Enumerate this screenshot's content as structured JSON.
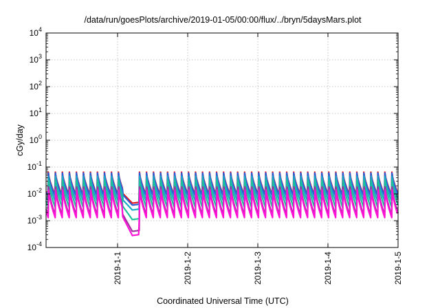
{
  "chart_data": {
    "type": "line",
    "title": "/data/run/goesPlots/archive/2019-01-05/00:00/flux/../bryn/5daysMars.plot",
    "xlabel": "Coordinated Universal Time (UTC)",
    "ylabel": "cGy/day",
    "yscale": "log",
    "ylim": [
      0.0001,
      10000
    ],
    "y_ticks": [
      {
        "exp": -4,
        "label_base": "10",
        "label_exp": "-4"
      },
      {
        "exp": -3,
        "label_base": "10",
        "label_exp": "-3"
      },
      {
        "exp": -2,
        "label_base": "10",
        "label_exp": "-2"
      },
      {
        "exp": -1,
        "label_base": "10",
        "label_exp": "-1"
      },
      {
        "exp": 0,
        "label_base": "10",
        "label_exp": "0"
      },
      {
        "exp": 1,
        "label_base": "10",
        "label_exp": "1"
      },
      {
        "exp": 2,
        "label_base": "10",
        "label_exp": "2"
      },
      {
        "exp": 3,
        "label_base": "10",
        "label_exp": "3"
      },
      {
        "exp": 4,
        "label_base": "10",
        "label_exp": "4"
      }
    ],
    "x_range_days": [
      -1.02,
      4.0
    ],
    "x_ticks": [
      {
        "day": 0,
        "label": "2019-1-1"
      },
      {
        "day": 1,
        "label": "2019-1-2"
      },
      {
        "day": 2,
        "label": "2019-1-3"
      },
      {
        "day": 3,
        "label": "2019-1-4"
      },
      {
        "day": 4,
        "label": "2019-1-5"
      }
    ],
    "grid": true,
    "cycle_days": 0.1,
    "dip": {
      "start_day": 0.07,
      "min_day": 0.21,
      "end_day": 0.31
    },
    "series": [
      {
        "color": "#e8151b",
        "peak": 0.065,
        "trough": 0.0095,
        "dip_min": 0.0045
      },
      {
        "color": "#2c5dd8",
        "peak": 0.06,
        "trough": 0.0085,
        "dip_min": 0.0038
      },
      {
        "color": "#18a7c6",
        "peak": 0.045,
        "trough": 0.0055,
        "dip_min": 0.0025
      },
      {
        "color": "#1fbf9a",
        "peak": 0.032,
        "trough": 0.0032,
        "dip_min": 0.0011
      },
      {
        "color": "#a030a0",
        "peak": 0.018,
        "trough": 0.0016,
        "dip_min": 0.0004
      },
      {
        "color": "#ff12d6",
        "peak": 0.014,
        "trough": 0.0013,
        "dip_min": 0.00028
      }
    ]
  }
}
